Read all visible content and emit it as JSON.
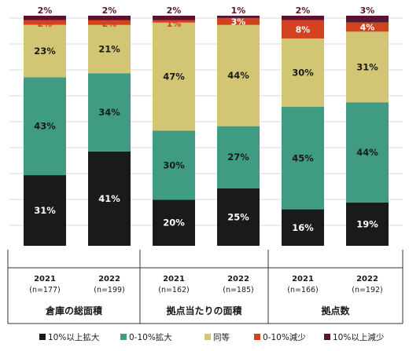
{
  "chart_data": {
    "type": "bar",
    "stacked": true,
    "normalized": true,
    "title": "",
    "xlabel": "",
    "ylabel": "",
    "ylim": [
      0,
      100
    ],
    "grid": true,
    "legend_position": "bottom",
    "groups": [
      {
        "label": "倉庫の総面積",
        "bars": [
          {
            "year": "2021",
            "n": "(n=177)"
          },
          {
            "year": "2022",
            "n": "(n=199)"
          }
        ]
      },
      {
        "label": "拠点当たりの面積",
        "bars": [
          {
            "year": "2021",
            "n": "(n=162)"
          },
          {
            "year": "2022",
            "n": "(n=185)"
          }
        ]
      },
      {
        "label": "拠点数",
        "bars": [
          {
            "year": "2021",
            "n": "(n=166)"
          },
          {
            "year": "2022",
            "n": "(n=192)"
          }
        ]
      }
    ],
    "categories": [
      "2021 (n=177)",
      "2022 (n=199)",
      "2021 (n=162)",
      "2022 (n=185)",
      "2021 (n=166)",
      "2022 (n=192)"
    ],
    "series": [
      {
        "name": "10%以上拡大",
        "color": "#181b1a",
        "label_color": "#ffffff",
        "values": [
          31,
          41,
          20,
          25,
          16,
          19
        ]
      },
      {
        "name": "0-10%拡大",
        "color": "#3f9b81",
        "label_color": "#1a1a1a",
        "values": [
          43,
          34,
          30,
          27,
          45,
          44
        ]
      },
      {
        "name": "同等",
        "color": "#d2c674",
        "label_color": "#1a1a1a",
        "values": [
          23,
          21,
          47,
          44,
          30,
          31
        ]
      },
      {
        "name": "0-10%減少",
        "color": "#d2421f",
        "label_color": "#ffffff",
        "values": [
          2,
          2,
          1,
          3,
          8,
          4
        ]
      },
      {
        "name": "10%以上減少",
        "color": "#5a1430",
        "label_color": "#5a1430",
        "values": [
          2,
          2,
          2,
          1,
          2,
          3
        ]
      }
    ]
  }
}
